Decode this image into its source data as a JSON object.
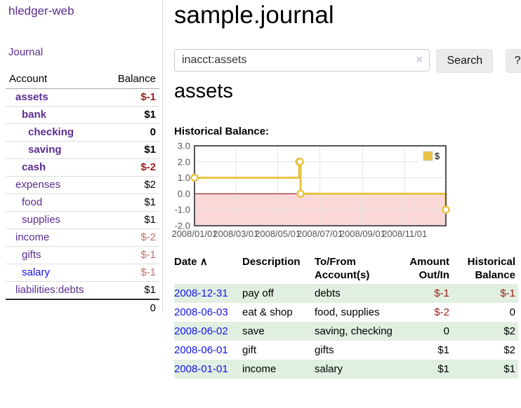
{
  "app": {
    "name": "hledger-web"
  },
  "sidebar": {
    "nav_journal": "Journal",
    "accounts_table": {
      "headers": [
        "Account",
        "Balance"
      ],
      "rows": [
        {
          "name": "assets",
          "depth": 1,
          "bold": true,
          "balance": "$-1",
          "balance_class": "neg"
        },
        {
          "name": "bank",
          "depth": 2,
          "bold": true,
          "balance": "$1",
          "balance_class": ""
        },
        {
          "name": "checking",
          "depth": 3,
          "bold": true,
          "balance": "0",
          "balance_class": ""
        },
        {
          "name": "saving",
          "depth": 3,
          "bold": true,
          "balance": "$1",
          "balance_class": ""
        },
        {
          "name": "cash",
          "depth": 2,
          "bold": true,
          "balance": "$-2",
          "balance_class": "neg"
        },
        {
          "name": "expenses",
          "depth": 1,
          "bold": false,
          "balance": "$2",
          "balance_class": ""
        },
        {
          "name": "food",
          "depth": 2,
          "bold": false,
          "balance": "$1",
          "balance_class": ""
        },
        {
          "name": "supplies",
          "depth": 2,
          "bold": false,
          "balance": "$1",
          "balance_class": ""
        },
        {
          "name": "income",
          "depth": 1,
          "bold": false,
          "balance": "$-2",
          "balance_class": "negsoft"
        },
        {
          "name": "gifts",
          "depth": 2,
          "bold": false,
          "balance": "$-1",
          "balance_class": "negsoft"
        },
        {
          "name": "salary",
          "depth": 2,
          "bold": false,
          "balance": "$-1",
          "balance_class": "negsoft",
          "unvisited": true
        },
        {
          "name": "liabilities:debts",
          "depth": 1,
          "bold": false,
          "balance": "$1",
          "balance_class": ""
        }
      ],
      "total": "0"
    }
  },
  "main": {
    "title": "sample.journal",
    "search": {
      "value": "inacct:assets",
      "clear_icon": "×",
      "button_label": "Search",
      "help_label": "?"
    },
    "account_heading": "assets"
  },
  "chart_data": {
    "type": "line",
    "step": true,
    "title": "Historical Balance:",
    "series": [
      {
        "name": "$",
        "color": "#e9c340",
        "points": [
          [
            "2008-01-01",
            1
          ],
          [
            "2008-06-01",
            2
          ],
          [
            "2008-06-02",
            2
          ],
          [
            "2008-06-03",
            0
          ],
          [
            "2008-12-31",
            -1
          ]
        ]
      }
    ],
    "ylim": [
      -2,
      3
    ],
    "yticks": [
      "3.0",
      "2.0",
      "1.0",
      "0.0",
      "-1.0",
      "-2.0"
    ],
    "xticks": [
      "2008/01/01",
      "2008/03/01",
      "2008/05/01",
      "2008/07/01",
      "2008/09/01",
      "2008/11/01"
    ],
    "xrange": [
      "2008-01-01",
      "2008-12-31"
    ],
    "grid": true,
    "legend_position": "top-right",
    "negative_region_color": "#fbd8d8",
    "zero_line_color": "#8b0000",
    "tick_label_color": "#545454"
  },
  "table": {
    "headers": [
      "Date",
      "Description",
      "To/From Account(s)",
      "Amount Out/In",
      "Historical Balance"
    ],
    "sort_icon": "∧",
    "rows": [
      {
        "date": "2008-12-31",
        "description": "pay off",
        "accounts": "debts",
        "amount": "$-1",
        "amount_neg": true,
        "balance": "$-1",
        "balance_neg": true
      },
      {
        "date": "2008-06-03",
        "description": "eat & shop",
        "accounts": "food, supplies",
        "amount": "$-2",
        "amount_neg": true,
        "balance": "0",
        "balance_neg": false
      },
      {
        "date": "2008-06-02",
        "description": "save",
        "accounts": "saving, checking",
        "amount": "0",
        "amount_neg": false,
        "balance": "$2",
        "balance_neg": false
      },
      {
        "date": "2008-06-01",
        "description": "gift",
        "accounts": "gifts",
        "amount": "$1",
        "amount_neg": false,
        "balance": "$2",
        "balance_neg": false
      },
      {
        "date": "2008-01-01",
        "description": "income",
        "accounts": "salary",
        "amount": "$1",
        "amount_neg": false,
        "balance": "$1",
        "balance_neg": false
      }
    ]
  },
  "colors": {
    "accent_purple": "#5c2d91",
    "link_blue": "#1414e8",
    "negative_strong": "#9e1b1b",
    "negative_soft": "#c96b6b",
    "row_green": "#e0efe0",
    "chart_line_gold": "#e9c340",
    "chart_negative_region": "#fbd8d8",
    "chart_zero_line": "#8b0000"
  }
}
